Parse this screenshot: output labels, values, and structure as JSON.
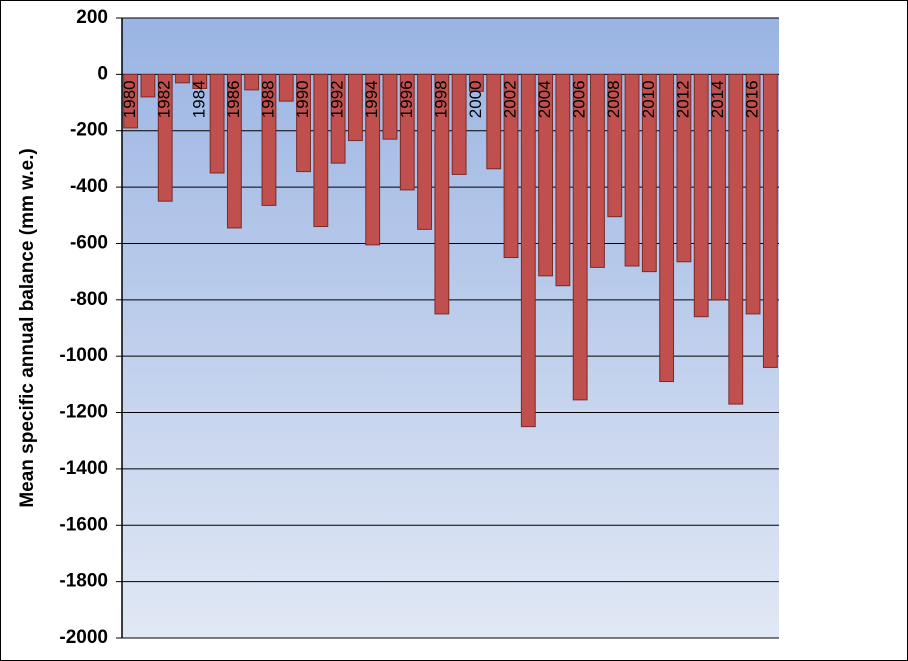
{
  "chart_data": {
    "type": "bar",
    "y_label": "Mean specific annual balance (mm w.e.)",
    "categories": [
      "1980",
      null,
      "1982",
      null,
      "1984",
      null,
      "1986",
      null,
      "1988",
      null,
      "1990",
      null,
      "1992",
      null,
      "1994",
      null,
      "1996",
      null,
      "1998",
      null,
      "2000",
      null,
      "2002",
      null,
      "2004",
      null,
      "2006",
      null,
      "2008",
      null,
      "2010",
      null,
      "2012",
      null,
      "2014",
      null,
      "2016",
      null
    ],
    "values": [
      -190,
      -80,
      -450,
      -30,
      -50,
      -350,
      -545,
      -55,
      -465,
      -95,
      -345,
      -540,
      -315,
      -235,
      -605,
      -230,
      -410,
      -550,
      -850,
      -355,
      -60,
      -335,
      -650,
      -1250,
      -715,
      -750,
      -1155,
      -685,
      -505,
      -680,
      -700,
      -1090,
      -665,
      -860,
      -800,
      -1170,
      -850,
      -1040
    ],
    "color": "#c0504d",
    "ylim": [
      -2000,
      200
    ],
    "yticks": [
      200,
      0,
      -200,
      -400,
      -600,
      -800,
      -1000,
      -1200,
      -1400,
      -1600,
      -1800,
      -2000
    ],
    "grid": true
  }
}
